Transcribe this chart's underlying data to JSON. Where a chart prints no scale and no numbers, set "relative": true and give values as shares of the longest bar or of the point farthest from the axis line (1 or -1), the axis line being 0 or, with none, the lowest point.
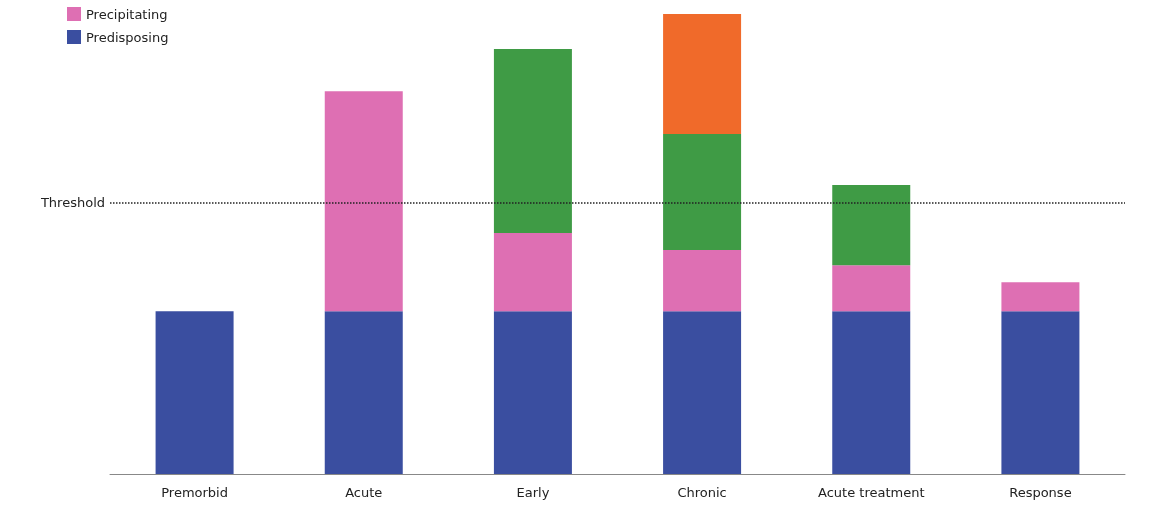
{
  "chart_data": {
    "type": "bar",
    "stacked": true,
    "relative": true,
    "legend": "top left",
    "categories": [
      "Premorbid",
      "Acute",
      "Early",
      "Chronic",
      "Acute treatment",
      "Response"
    ],
    "series": [
      {
        "name": "Predisposing",
        "color": "#3a4ea0",
        "values": [
          0.354,
          0.354,
          0.354,
          0.354,
          0.354,
          0.354
        ]
      },
      {
        "name": "Precipitating",
        "color": "#de6fb3",
        "values": [
          null,
          0.478,
          0.17,
          0.133,
          0.1,
          0.063
        ]
      },
      {
        "color": "#3f9b45",
        "values": [
          null,
          null,
          0.4,
          0.252,
          0.174,
          null
        ]
      },
      {
        "color": "#f06a2a",
        "values": [
          null,
          null,
          null,
          0.261,
          null,
          null
        ]
      }
    ],
    "ref_lines": [
      {
        "axis": "y",
        "value": 0.593,
        "label": "Threshold",
        "line_style": "dotted",
        "color": "#222222"
      }
    ]
  }
}
